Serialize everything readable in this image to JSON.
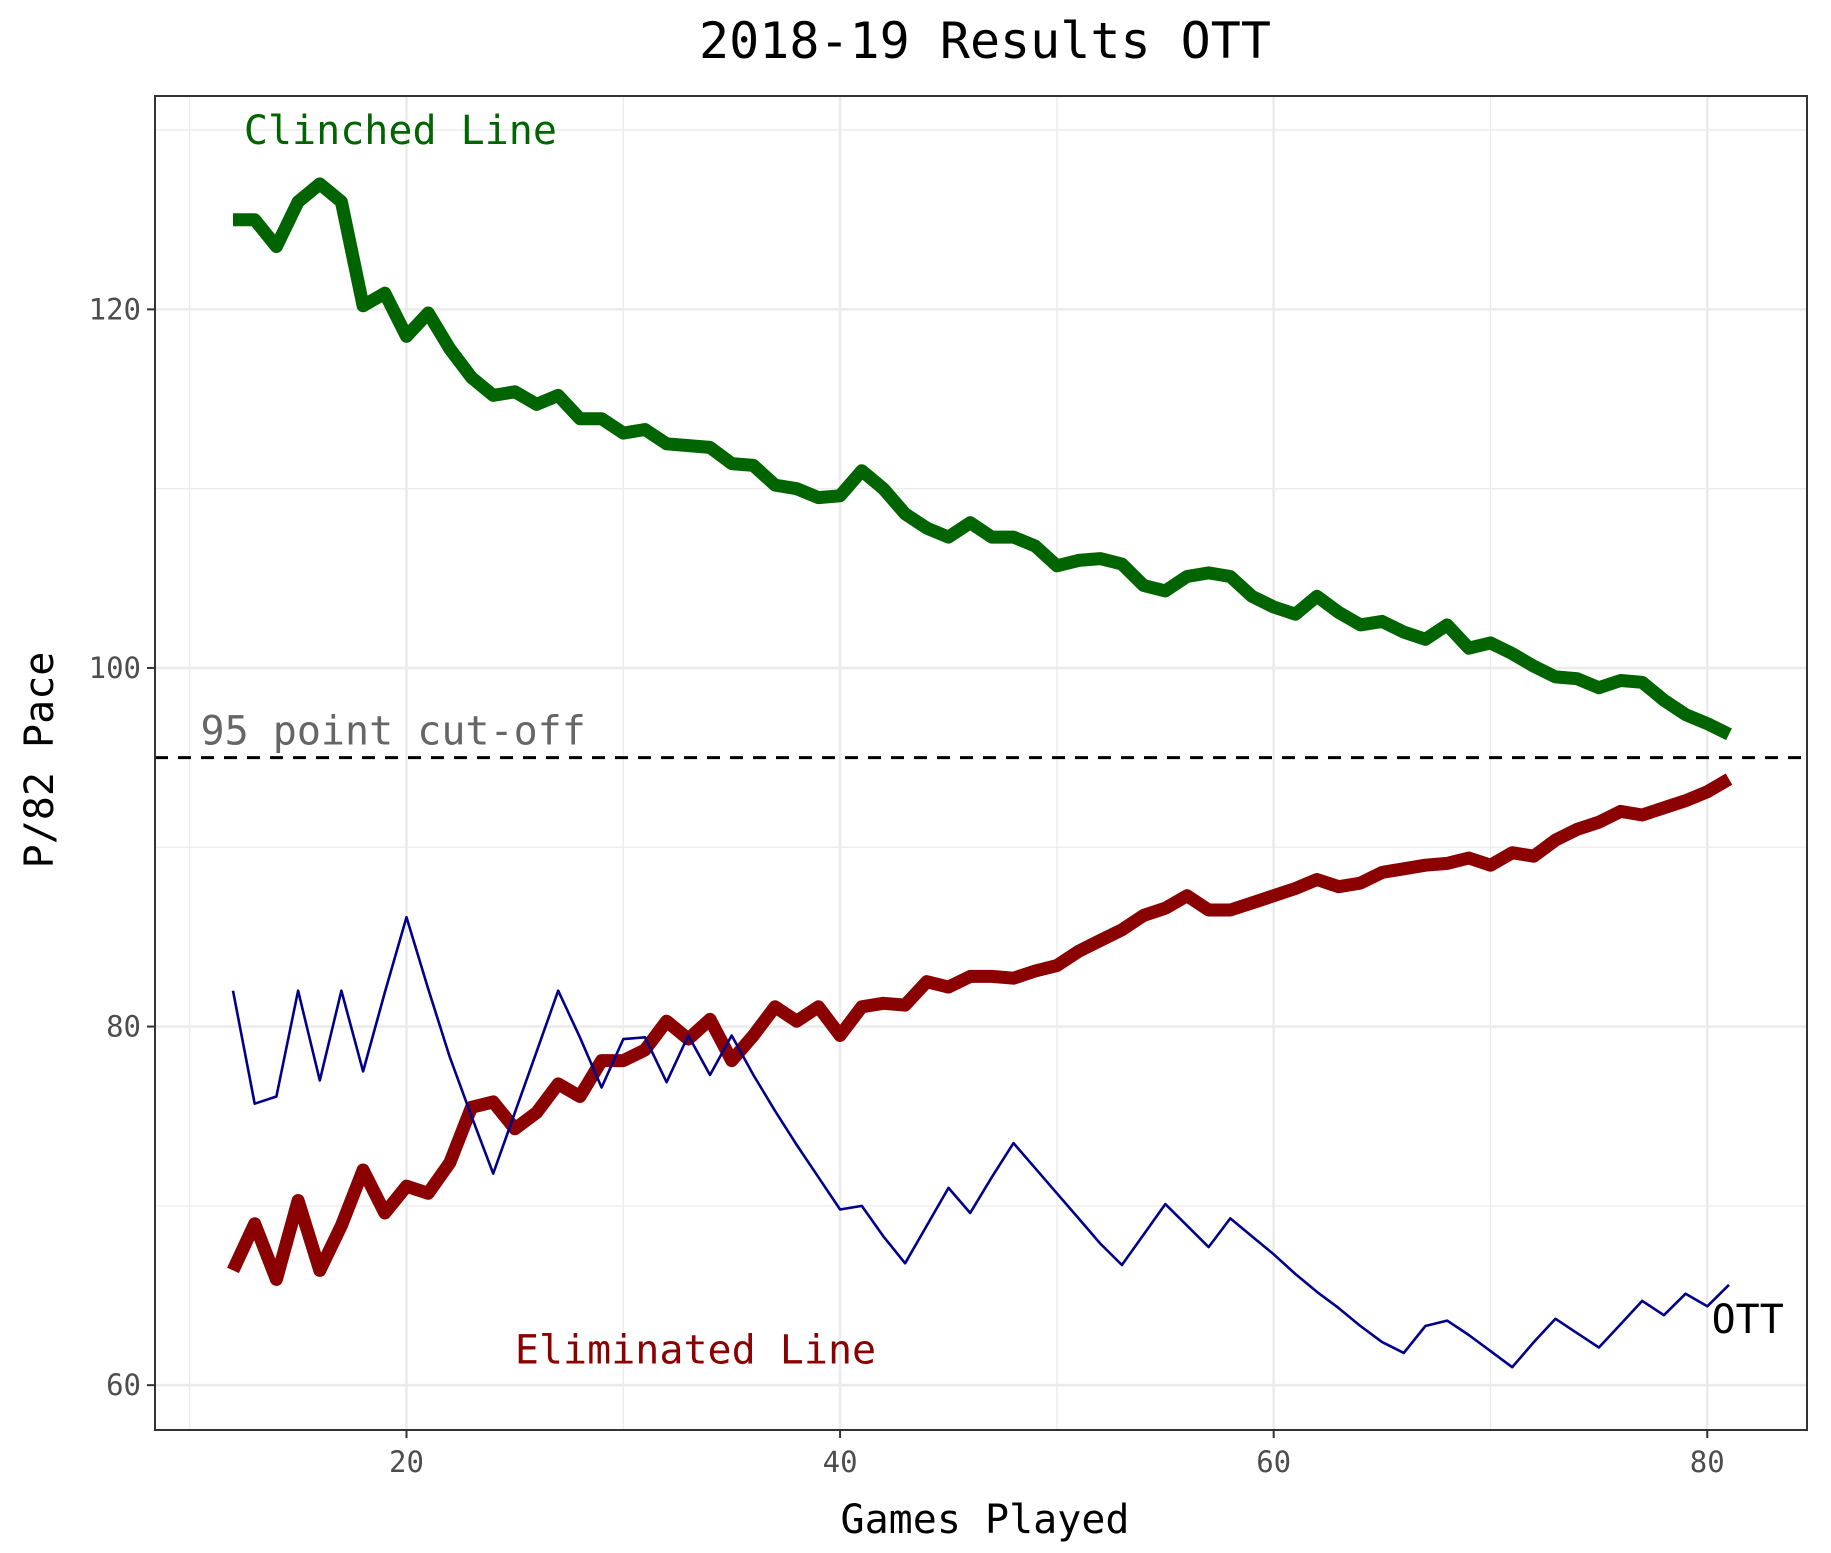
{
  "chart_data": {
    "type": "line",
    "title": "2018-19 Results OTT",
    "xlabel": "Games Played",
    "ylabel": "P/82 Pace",
    "xlim": [
      8.4,
      84.6
    ],
    "ylim": [
      57.5,
      131.9
    ],
    "x_ticks": [
      20,
      40,
      60,
      80
    ],
    "y_ticks": [
      60,
      80,
      100,
      120
    ],
    "grid": true,
    "reference_line": {
      "y": 95,
      "style": "dashed",
      "color": "#000000",
      "label": "95 point cut-off"
    },
    "colors": {
      "clinched": "#006400",
      "eliminated": "#8b0000",
      "team": "#00008b",
      "cutoff_label": "#666666",
      "grid": "#ebebeb"
    },
    "annotations": {
      "clinched": {
        "text": "Clinched Line",
        "x": 12.5,
        "y": 130.0
      },
      "eliminated": {
        "text": "Eliminated Line",
        "x": 25.0,
        "y": 62.0
      },
      "cutoff": {
        "text": "95 point cut-off",
        "x": 10.5,
        "y": 96.5
      },
      "team": {
        "text": "OTT",
        "x": 80.2,
        "y": 63.7
      }
    },
    "series": [
      {
        "name": "Clinched Line",
        "role": "clinched",
        "x": [
          12,
          13,
          14,
          15,
          16,
          17,
          18,
          19,
          20,
          21,
          22,
          23,
          24,
          25,
          26,
          27,
          28,
          29,
          30,
          31,
          32,
          33,
          34,
          35,
          36,
          37,
          38,
          39,
          40,
          41,
          42,
          43,
          44,
          45,
          46,
          47,
          48,
          49,
          50,
          51,
          52,
          53,
          54,
          55,
          56,
          57,
          58,
          59,
          60,
          61,
          62,
          63,
          64,
          65,
          66,
          67,
          68,
          69,
          70,
          71,
          72,
          73,
          74,
          75,
          76,
          77,
          78,
          79,
          80,
          81
        ],
        "values": [
          125.0,
          125.0,
          123.5,
          126.0,
          127.0,
          126.0,
          120.2,
          120.9,
          118.5,
          119.8,
          117.8,
          116.2,
          115.2,
          115.4,
          114.7,
          115.2,
          113.9,
          113.9,
          113.1,
          113.3,
          112.5,
          112.4,
          112.3,
          111.4,
          111.3,
          110.2,
          110.0,
          109.5,
          109.6,
          111.0,
          110.0,
          108.6,
          107.8,
          107.3,
          108.1,
          107.3,
          107.3,
          106.8,
          105.7,
          106.0,
          106.1,
          105.8,
          104.6,
          104.3,
          105.1,
          105.3,
          105.1,
          104.0,
          103.4,
          103.0,
          104.0,
          103.1,
          102.4,
          102.6,
          102.0,
          101.6,
          102.4,
          101.1,
          101.4,
          100.8,
          100.1,
          99.5,
          99.4,
          98.9,
          99.3,
          99.2,
          98.2,
          97.4,
          96.9,
          96.3
        ]
      },
      {
        "name": "Eliminated Line",
        "role": "eliminated",
        "x": [
          12,
          13,
          14,
          15,
          16,
          17,
          18,
          19,
          20,
          21,
          22,
          23,
          24,
          25,
          26,
          27,
          28,
          29,
          30,
          31,
          32,
          33,
          34,
          35,
          36,
          37,
          38,
          39,
          40,
          41,
          42,
          43,
          44,
          45,
          46,
          47,
          48,
          49,
          50,
          51,
          52,
          53,
          54,
          55,
          56,
          57,
          58,
          59,
          60,
          61,
          62,
          63,
          64,
          65,
          66,
          67,
          68,
          69,
          70,
          71,
          72,
          73,
          74,
          75,
          76,
          77,
          78,
          79,
          80,
          81
        ],
        "values": [
          66.4,
          69.0,
          65.9,
          70.3,
          66.4,
          68.9,
          72.0,
          69.6,
          71.1,
          70.7,
          72.4,
          75.5,
          75.8,
          74.3,
          75.2,
          76.8,
          76.1,
          78.1,
          78.1,
          78.7,
          80.3,
          79.3,
          80.4,
          78.1,
          79.5,
          81.1,
          80.3,
          81.1,
          79.5,
          81.1,
          81.3,
          81.2,
          82.5,
          82.2,
          82.8,
          82.8,
          82.7,
          83.1,
          83.4,
          84.2,
          84.8,
          85.4,
          86.2,
          86.6,
          87.3,
          86.5,
          86.5,
          86.9,
          87.3,
          87.7,
          88.2,
          87.8,
          88.0,
          88.6,
          88.8,
          89.0,
          89.1,
          89.4,
          89.0,
          89.7,
          89.5,
          90.4,
          91.0,
          91.4,
          92.0,
          91.8,
          92.2,
          92.6,
          93.1,
          93.8
        ]
      },
      {
        "name": "OTT",
        "role": "team",
        "x": [
          12,
          13,
          14,
          15,
          16,
          17,
          18,
          19,
          20,
          21,
          22,
          23,
          24,
          25,
          26,
          27,
          28,
          29,
          30,
          31,
          32,
          33,
          34,
          35,
          36,
          37,
          38,
          39,
          40,
          41,
          42,
          43,
          44,
          45,
          46,
          47,
          48,
          49,
          50,
          51,
          52,
          53,
          54,
          55,
          56,
          57,
          58,
          59,
          60,
          61,
          62,
          63,
          64,
          65,
          66,
          67,
          68,
          69,
          70,
          71,
          72,
          73,
          74,
          75,
          76,
          77,
          78,
          79,
          80,
          81
        ],
        "values": [
          82.0,
          75.7,
          76.1,
          82.0,
          77.0,
          82.0,
          77.5,
          81.9,
          86.1,
          82.1,
          78.3,
          75.0,
          71.8,
          75.2,
          78.6,
          82.0,
          79.4,
          76.6,
          79.3,
          79.4,
          76.9,
          79.5,
          77.3,
          79.5,
          77.3,
          75.3,
          73.4,
          71.6,
          69.8,
          70.0,
          68.3,
          66.8,
          68.9,
          71.0,
          69.6,
          71.6,
          73.5,
          72.1,
          70.7,
          69.3,
          67.9,
          66.7,
          68.4,
          70.1,
          68.9,
          67.7,
          69.3,
          68.3,
          67.3,
          66.2,
          65.2,
          64.3,
          63.3,
          62.4,
          61.8,
          63.3,
          63.6,
          62.8,
          61.9,
          61.0,
          62.4,
          63.7,
          62.9,
          62.1,
          63.4,
          64.7,
          63.9,
          65.1,
          64.4,
          65.6
        ]
      }
    ]
  }
}
